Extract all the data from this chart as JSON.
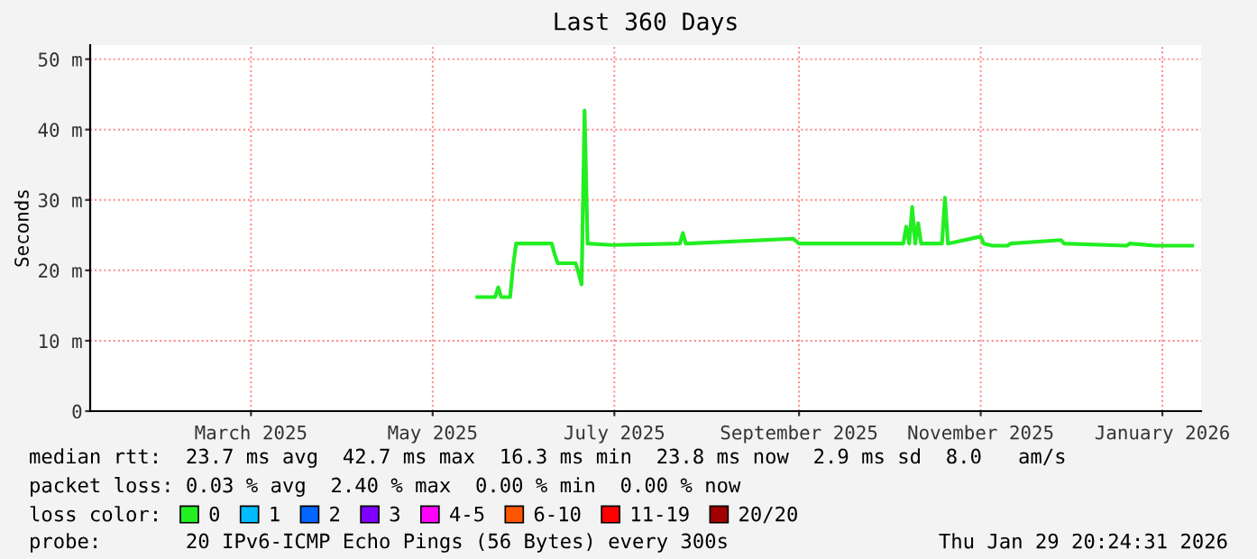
{
  "chart_data": {
    "type": "line",
    "title": "Last 360 Days",
    "ylabel": "Seconds",
    "x": [
      "2025-05-16",
      "2025-05-22",
      "2025-05-23",
      "2025-05-24",
      "2025-05-27",
      "2025-05-28",
      "2025-05-29",
      "2025-06-10",
      "2025-06-11",
      "2025-06-12",
      "2025-06-18",
      "2025-06-19",
      "2025-06-20",
      "2025-06-21",
      "2025-06-22",
      "2025-06-30",
      "2025-07-23",
      "2025-07-24",
      "2025-07-25",
      "2025-08-30",
      "2025-09-01",
      "2025-10-06",
      "2025-10-07",
      "2025-10-08",
      "2025-10-09",
      "2025-10-10",
      "2025-10-11",
      "2025-10-12",
      "2025-10-19",
      "2025-10-20",
      "2025-10-21",
      "2025-11-01",
      "2025-11-02",
      "2025-11-05",
      "2025-11-10",
      "2025-11-11",
      "2025-11-28",
      "2025-11-29",
      "2025-12-20",
      "2025-12-21",
      "2025-12-30",
      "2026-01-11"
    ],
    "series": [
      {
        "name": "0",
        "color": "#22ee22",
        "values": [
          16.2,
          16.2,
          17.6,
          16.2,
          16.2,
          20.6,
          23.8,
          23.8,
          22.2,
          21.0,
          21.0,
          19.6,
          18.0,
          42.7,
          23.8,
          23.6,
          23.8,
          25.3,
          23.8,
          24.5,
          23.8,
          23.8,
          26.2,
          23.8,
          29.0,
          23.8,
          26.7,
          23.8,
          23.8,
          30.3,
          23.8,
          24.8,
          23.8,
          23.5,
          23.5,
          23.8,
          24.3,
          23.8,
          23.5,
          23.8,
          23.5,
          23.5
        ]
      },
      {
        "name": "1",
        "color": "#00bbff",
        "values": [
          null,
          null,
          null,
          null,
          null,
          null,
          null,
          null,
          null,
          null,
          null,
          null,
          null,
          null,
          null,
          null,
          null,
          null,
          null,
          null,
          null,
          null,
          null,
          null,
          null,
          null,
          null,
          null,
          null,
          null,
          null,
          null,
          null,
          null,
          null,
          null,
          null,
          null,
          null,
          null,
          null,
          null
        ]
      },
      {
        "name": "2",
        "color": "#0066ff",
        "values": [
          null,
          null,
          null,
          null,
          null,
          null,
          null,
          null,
          null,
          null,
          null,
          null,
          null,
          null,
          null,
          null,
          null,
          null,
          null,
          null,
          null,
          null,
          null,
          null,
          null,
          null,
          null,
          null,
          null,
          null,
          null,
          null,
          null,
          null,
          null,
          null,
          null,
          null,
          null,
          null,
          null,
          null
        ]
      },
      {
        "name": "3",
        "color": "#8000ff",
        "values": [
          null,
          null,
          null,
          null,
          null,
          null,
          null,
          null,
          null,
          null,
          null,
          null,
          null,
          null,
          null,
          null,
          null,
          null,
          null,
          null,
          null,
          null,
          null,
          null,
          null,
          null,
          null,
          null,
          null,
          null,
          null,
          null,
          null,
          null,
          null,
          null,
          null,
          null,
          null,
          null,
          null,
          null
        ]
      },
      {
        "name": "4-5",
        "color": "#ff00ff",
        "values": [
          null,
          null,
          null,
          null,
          null,
          null,
          null,
          null,
          null,
          null,
          null,
          null,
          null,
          null,
          null,
          null,
          null,
          null,
          null,
          null,
          null,
          null,
          null,
          null,
          null,
          null,
          null,
          null,
          null,
          null,
          null,
          null,
          null,
          null,
          null,
          null,
          null,
          null,
          null,
          null,
          null,
          null
        ]
      },
      {
        "name": "6-10",
        "color": "#ff5500",
        "values": [
          null,
          null,
          null,
          null,
          null,
          null,
          null,
          null,
          null,
          null,
          null,
          null,
          null,
          null,
          null,
          null,
          null,
          null,
          null,
          null,
          null,
          null,
          null,
          null,
          null,
          null,
          null,
          null,
          null,
          null,
          null,
          null,
          null,
          null,
          null,
          null,
          null,
          null,
          null,
          null,
          null,
          null
        ]
      },
      {
        "name": "11-19",
        "color": "#ff0000",
        "values": [
          null,
          null,
          null,
          null,
          null,
          null,
          null,
          null,
          null,
          null,
          null,
          null,
          null,
          null,
          null,
          null,
          null,
          null,
          null,
          null,
          null,
          null,
          null,
          null,
          null,
          null,
          null,
          null,
          null,
          null,
          null,
          null,
          null,
          null,
          null,
          null,
          null,
          null,
          null,
          null,
          null,
          null
        ]
      },
      {
        "name": "20/20",
        "color": "#a10000",
        "values": [
          null,
          null,
          null,
          null,
          null,
          null,
          null,
          null,
          null,
          null,
          null,
          null,
          null,
          null,
          null,
          null,
          null,
          null,
          null,
          null,
          null,
          null,
          null,
          null,
          null,
          null,
          null,
          null,
          null,
          null,
          null,
          null,
          null,
          null,
          null,
          null,
          null,
          null,
          null,
          null,
          null,
          null
        ]
      }
    ],
    "xlim": [
      "2025-01-06",
      "2026-01-14"
    ],
    "xticks": [
      {
        "value": "2025-03-01",
        "label": "March 2025"
      },
      {
        "value": "2025-05-01",
        "label": "May 2025"
      },
      {
        "value": "2025-07-01",
        "label": "July 2025"
      },
      {
        "value": "2025-09-01",
        "label": "September 2025"
      },
      {
        "value": "2025-11-01",
        "label": "November 2025"
      },
      {
        "value": "2026-01-01",
        "label": "January 2026"
      }
    ],
    "ylim": [
      0,
      52
    ],
    "yticks": [
      {
        "value": 0,
        "label": "0"
      },
      {
        "value": 10,
        "label": "10 m"
      },
      {
        "value": 20,
        "label": "20 m"
      },
      {
        "value": 30,
        "label": "30 m"
      },
      {
        "value": 40,
        "label": "40 m"
      },
      {
        "value": 50,
        "label": "50 m"
      }
    ],
    "grid": true,
    "legend": "bottom",
    "legend_title": "loss color:",
    "marker": "none",
    "line_style": "solid",
    "annotations": [
      "median rtt:  23.7 ms avg  42.7 ms max  16.3 ms min  23.8 ms now  2.9 ms sd  8.0   am/s",
      "packet loss: 0.03 % avg  2.40 % max  0.00 % min  0.00 % now",
      "probe:       20 IPv6-ICMP Echo Pings (56 Bytes) every 300s",
      "Thu Jan 29 20:24:31 2026"
    ]
  }
}
